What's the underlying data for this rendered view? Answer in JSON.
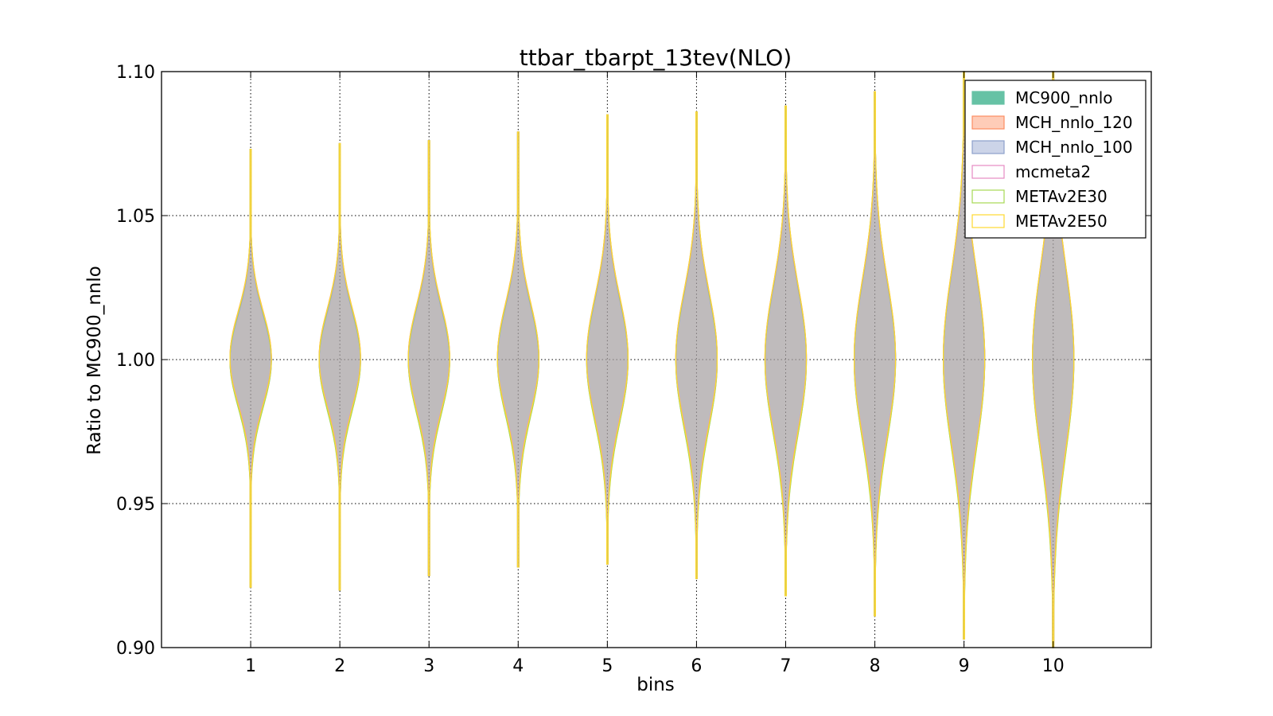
{
  "chart_data": {
    "type": "violin",
    "title": "ttbar_tbarpt_13tev(NLO)",
    "xlabel": "bins",
    "ylabel": "Ratio to MC900_nnlo",
    "ylim": [
      0.9,
      1.1
    ],
    "xlim": [
      0,
      11.1
    ],
    "yticks": [
      {
        "value": 0.9,
        "label": "0.90"
      },
      {
        "value": 0.95,
        "label": "0.95"
      },
      {
        "value": 1.0,
        "label": "1.00"
      },
      {
        "value": 1.05,
        "label": "1.05"
      },
      {
        "value": 1.1,
        "label": "1.10"
      }
    ],
    "xticks": [
      {
        "value": 1,
        "label": "1"
      },
      {
        "value": 2,
        "label": "2"
      },
      {
        "value": 3,
        "label": "3"
      },
      {
        "value": 4,
        "label": "4"
      },
      {
        "value": 5,
        "label": "5"
      },
      {
        "value": 6,
        "label": "6"
      },
      {
        "value": 7,
        "label": "7"
      },
      {
        "value": 8,
        "label": "8"
      },
      {
        "value": 9,
        "label": "9"
      },
      {
        "value": 10,
        "label": "10"
      }
    ],
    "grid": true,
    "legend_position": "top-right",
    "series": [
      {
        "name": "MC900_nnlo",
        "fill": "#66c2a5",
        "edge": "#66c2a5",
        "filled": true
      },
      {
        "name": "MCH_nnlo_120",
        "fill": "#fc8d62",
        "edge": "#fc8d62",
        "filled": true
      },
      {
        "name": "MCH_nnlo_100",
        "fill": "#8da0cb",
        "edge": "#8da0cb",
        "filled": true
      },
      {
        "name": "mcmeta2",
        "fill": "#e78ac3",
        "edge": "#e78ac3",
        "filled": false
      },
      {
        "name": "METAv2E30",
        "fill": "#a6d854",
        "edge": "#a6d854",
        "filled": false
      },
      {
        "name": "METAv2E50",
        "fill": "#ffd92f",
        "edge": "#ffd92f",
        "filled": false
      }
    ],
    "violins": [
      {
        "bin": 1,
        "min": 0.921,
        "max": 1.073,
        "sd": 0.016
      },
      {
        "bin": 2,
        "min": 0.92,
        "max": 1.075,
        "sd": 0.017
      },
      {
        "bin": 3,
        "min": 0.925,
        "max": 1.076,
        "sd": 0.018
      },
      {
        "bin": 4,
        "min": 0.928,
        "max": 1.079,
        "sd": 0.019
      },
      {
        "bin": 5,
        "min": 0.929,
        "max": 1.085,
        "sd": 0.021
      },
      {
        "bin": 6,
        "min": 0.924,
        "max": 1.086,
        "sd": 0.023
      },
      {
        "bin": 7,
        "min": 0.918,
        "max": 1.088,
        "sd": 0.025
      },
      {
        "bin": 8,
        "min": 0.911,
        "max": 1.093,
        "sd": 0.027
      },
      {
        "bin": 9,
        "min": 0.903,
        "max": 1.1,
        "sd": 0.03
      },
      {
        "bin": 10,
        "min": 0.9,
        "max": 1.1,
        "sd": 0.032
      }
    ]
  }
}
